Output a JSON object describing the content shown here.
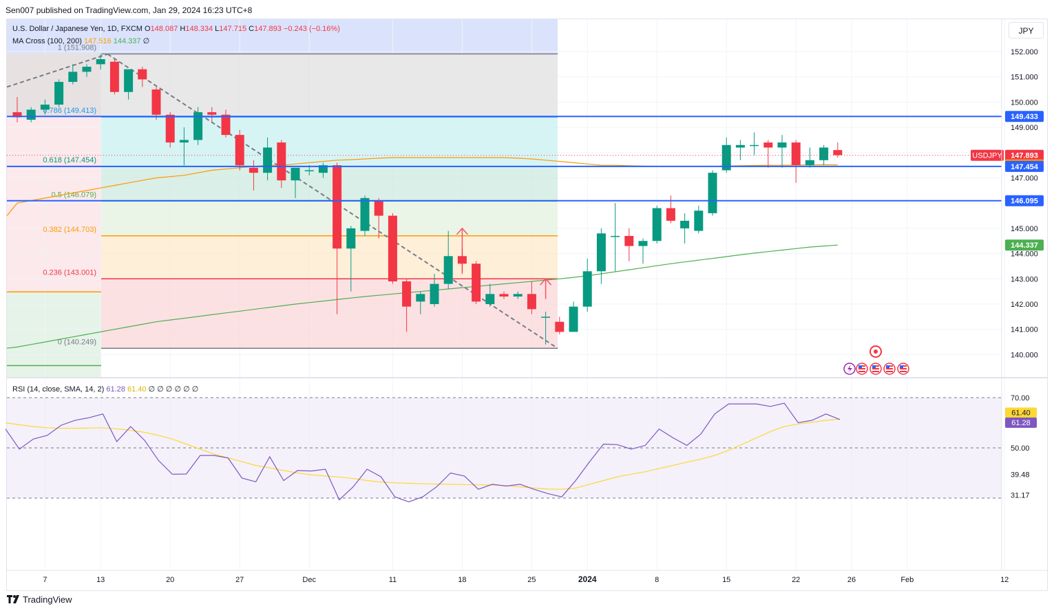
{
  "header": {
    "publish_line": "Sen007 published on TradingView.com, Jan 29, 2024 16:23 UTC+8"
  },
  "legend": {
    "symbol": "U.S. Dollar / Japanese Yen, 1D, FXCM",
    "o_label": "O",
    "o_value": "148.087",
    "h_label": "H",
    "h_value": "148.334",
    "l_label": "L",
    "l_value": "147.715",
    "c_label": "C",
    "c_value": "147.893",
    "change": "−0.243 (−0.16%)",
    "ma_label": "MA Cross (100, 200)",
    "ma_fast": "147.516",
    "ma_slow": "144.337",
    "ma_extra": "∅",
    "rsi_label": "RSI (14, close, SMA, 14, 2)",
    "rsi_value": "61.28",
    "rsi_ma": "61.40",
    "rsi_extra": "∅ ∅ ∅ ∅ ∅ ∅"
  },
  "currency_button": "JPY",
  "footer": {
    "brand": "TradingView"
  },
  "colors": {
    "up": "#089981",
    "down": "#f23645",
    "ma100": "#ff9800",
    "ma200": "#4caf50",
    "rsi": "#7e57c2",
    "rsi_ma": "#fdd835",
    "blue_line": "#2962ff",
    "trend": "#787b86"
  },
  "chart_data": [
    {
      "type": "candlestick",
      "title": "U.S. Dollar / Japanese Yen, 1D, FXCM",
      "x_ticks": [
        "7",
        "13",
        "20",
        "27",
        "Dec",
        "11",
        "18",
        "25",
        "2024",
        "8",
        "15",
        "22",
        "26",
        "Feb",
        "12"
      ],
      "y_ticks": [
        "152.000",
        "151.000",
        "150.000",
        "149.000",
        "148.000",
        "147.000",
        "146.000",
        "145.000",
        "144.000",
        "143.000",
        "142.000",
        "141.000",
        "140.000"
      ],
      "ylim": [
        139.3,
        153.0
      ],
      "grid": true,
      "ohlc": [
        [
          149.6,
          150.2,
          149.2,
          149.4
        ],
        [
          149.3,
          149.8,
          149.2,
          149.7
        ],
        [
          149.7,
          150.1,
          149.5,
          149.9
        ],
        [
          149.9,
          150.9,
          149.8,
          150.8
        ],
        [
          150.8,
          151.5,
          150.7,
          151.2
        ],
        [
          151.2,
          151.5,
          151.0,
          151.4
        ],
        [
          151.5,
          151.9,
          151.3,
          151.7
        ],
        [
          151.6,
          151.7,
          150.3,
          150.4
        ],
        [
          150.4,
          151.3,
          150.1,
          151.3
        ],
        [
          151.3,
          151.4,
          150.6,
          150.9
        ],
        [
          150.5,
          150.6,
          149.3,
          149.5
        ],
        [
          149.5,
          149.6,
          148.2,
          148.4
        ],
        [
          148.4,
          149.0,
          147.5,
          148.5
        ],
        [
          148.5,
          149.8,
          148.3,
          149.6
        ],
        [
          149.6,
          149.8,
          149.2,
          149.5
        ],
        [
          149.5,
          149.7,
          148.6,
          148.7
        ],
        [
          148.7,
          148.9,
          147.3,
          147.5
        ],
        [
          147.4,
          147.7,
          146.5,
          147.2
        ],
        [
          147.2,
          148.6,
          146.9,
          148.2
        ],
        [
          148.4,
          148.5,
          146.6,
          146.9
        ],
        [
          146.9,
          147.4,
          146.2,
          147.4
        ],
        [
          147.3,
          147.5,
          147.1,
          147.3
        ],
        [
          147.2,
          147.6,
          147.0,
          147.5
        ],
        [
          147.5,
          147.6,
          141.6,
          144.2
        ],
        [
          144.2,
          145.1,
          142.5,
          145.0
        ],
        [
          144.9,
          146.3,
          144.7,
          146.2
        ],
        [
          146.1,
          146.2,
          144.6,
          145.5
        ],
        [
          145.5,
          145.6,
          142.8,
          142.9
        ],
        [
          142.9,
          143.0,
          140.9,
          141.9
        ],
        [
          142.1,
          142.5,
          141.6,
          142.4
        ],
        [
          142.0,
          143.2,
          141.9,
          142.8
        ],
        [
          142.8,
          144.9,
          142.6,
          143.9
        ],
        [
          143.9,
          144.2,
          143.3,
          143.6
        ],
        [
          143.6,
          143.7,
          142.0,
          142.1
        ],
        [
          142.0,
          142.8,
          141.9,
          142.4
        ],
        [
          142.4,
          142.5,
          142.2,
          142.3
        ],
        [
          142.3,
          142.5,
          142.2,
          142.4
        ],
        [
          142.4,
          142.9,
          141.6,
          141.8
        ],
        [
          141.5,
          141.7,
          140.4,
          141.5
        ],
        [
          141.3,
          141.5,
          140.8,
          140.9
        ],
        [
          140.9,
          142.1,
          140.9,
          141.9
        ],
        [
          141.9,
          143.8,
          141.7,
          143.3
        ],
        [
          143.3,
          145.0,
          142.8,
          144.8
        ],
        [
          144.7,
          146.0,
          143.3,
          144.7
        ],
        [
          144.7,
          145.0,
          143.7,
          144.3
        ],
        [
          144.3,
          144.6,
          143.6,
          144.5
        ],
        [
          144.5,
          145.9,
          144.4,
          145.8
        ],
        [
          145.8,
          146.3,
          145.2,
          145.3
        ],
        [
          145.0,
          145.6,
          144.4,
          145.3
        ],
        [
          144.9,
          145.9,
          144.8,
          145.7
        ],
        [
          145.6,
          147.3,
          145.5,
          147.2
        ],
        [
          147.3,
          148.6,
          147.2,
          148.3
        ],
        [
          148.2,
          148.5,
          147.7,
          148.3
        ],
        [
          148.3,
          148.8,
          147.9,
          148.3
        ],
        [
          148.4,
          148.5,
          147.4,
          148.2
        ],
        [
          148.2,
          148.7,
          147.4,
          148.4
        ],
        [
          148.4,
          148.5,
          146.8,
          147.5
        ],
        [
          147.5,
          148.2,
          147.4,
          147.7
        ],
        [
          147.7,
          148.3,
          147.5,
          148.2
        ],
        [
          148.1,
          148.4,
          147.8,
          147.9
        ]
      ],
      "ma100": [
        146.0,
        146.1,
        146.2,
        146.3,
        146.4,
        146.5,
        146.6,
        146.7,
        146.8,
        146.9,
        147.0,
        147.05,
        147.1,
        147.2,
        147.3,
        147.35,
        147.4,
        147.45,
        147.5,
        147.5,
        147.55,
        147.6,
        147.65,
        147.7,
        147.72,
        147.75,
        147.78,
        147.8,
        147.8,
        147.8,
        147.8,
        147.8,
        147.8,
        147.8,
        147.8,
        147.8,
        147.78,
        147.75,
        147.7,
        147.65,
        147.6,
        147.55,
        147.5,
        147.5,
        147.48,
        147.47,
        147.46,
        147.46,
        147.46,
        147.46,
        147.46,
        147.47,
        147.48,
        147.49,
        147.5,
        147.5,
        147.51,
        147.51,
        147.52,
        147.516
      ],
      "ma200": [
        140.3,
        140.4,
        140.5,
        140.6,
        140.7,
        140.8,
        140.9,
        141.0,
        141.1,
        141.2,
        141.3,
        141.37,
        141.44,
        141.51,
        141.58,
        141.65,
        141.72,
        141.79,
        141.86,
        141.93,
        142.0,
        142.06,
        142.12,
        142.18,
        142.24,
        142.3,
        142.35,
        142.4,
        142.45,
        142.5,
        142.55,
        142.6,
        142.65,
        142.7,
        142.75,
        142.8,
        142.85,
        142.9,
        142.95,
        143.0,
        143.06,
        143.12,
        143.2,
        143.28,
        143.36,
        143.44,
        143.52,
        143.6,
        143.67,
        143.74,
        143.81,
        143.88,
        143.95,
        144.02,
        144.08,
        144.14,
        144.2,
        144.26,
        144.3,
        144.337
      ],
      "fibonacci": [
        {
          "level": "1 (151.908)",
          "price": 151.908
        },
        {
          "level": "0.786 (149.413)",
          "price": 149.413
        },
        {
          "level": "0.618 (147.454)",
          "price": 147.454
        },
        {
          "level": "0.5 (146.079)",
          "price": 146.079
        },
        {
          "level": "0.382 (144.703)",
          "price": 144.703
        },
        {
          "level": "0.236 (143.001)",
          "price": 143.001
        },
        {
          "level": "0 (140.249)",
          "price": 140.249
        }
      ],
      "horizontal_lines": [
        149.433,
        147.454,
        146.095
      ],
      "price_labels": [
        {
          "text": "149.433",
          "price": 149.433,
          "color": "#2962ff"
        },
        {
          "text": "USDJPY",
          "price": 147.893,
          "color": "#f23645",
          "symbol": true
        },
        {
          "text": "147.893",
          "price": 147.893,
          "color": "#f23645"
        },
        {
          "text": "147.516",
          "price": 147.516,
          "color": "#ff9800"
        },
        {
          "text": "147.454",
          "price": 147.454,
          "color": "#2962ff"
        },
        {
          "text": "146.095",
          "price": 146.095,
          "color": "#2962ff"
        },
        {
          "text": "144.337",
          "price": 144.337,
          "color": "#4caf50"
        }
      ]
    },
    {
      "type": "line",
      "title": "RSI (14, close, SMA, 14, 2)",
      "y_ticks": [
        "70.00",
        "61.40",
        "61.28",
        "50.00",
        "39.48",
        "31.17"
      ],
      "levels": [
        70,
        50,
        30
      ],
      "ylim": [
        27.5,
        71.5
      ],
      "rsi": [
        57.5,
        49.5,
        53.5,
        55.0,
        59.0,
        61.0,
        62.0,
        63.5,
        52.5,
        58.5,
        53.0,
        45.0,
        39.5,
        39.6,
        47.0,
        47.0,
        46.0,
        38.0,
        36.5,
        46.5,
        37.0,
        41.0,
        40.8,
        41.5,
        29.3,
        34.5,
        41.5,
        38.5,
        30.5,
        28.5,
        30.5,
        34.5,
        40.0,
        38.8,
        33.5,
        35.5,
        34.8,
        35.5,
        33.5,
        31.8,
        30.5,
        37.0,
        44.5,
        51.5,
        51.3,
        49.5,
        51.0,
        57.5,
        54.0,
        51.0,
        55.5,
        63.5,
        67.5,
        67.5,
        67.5,
        66.5,
        67.8,
        60.0,
        61.0,
        63.5,
        61.28
      ],
      "rsi_ma": [
        60.0,
        59.2,
        58.5,
        58.0,
        57.8,
        57.8,
        57.9,
        58.0,
        57.6,
        57.0,
        56.2,
        55.0,
        53.5,
        51.5,
        49.5,
        47.5,
        46.0,
        44.5,
        43.0,
        42.0,
        41.0,
        40.0,
        39.3,
        38.8,
        38.4,
        37.8,
        37.0,
        36.4,
        36.1,
        35.9,
        35.7,
        35.6,
        35.5,
        35.4,
        35.3,
        35.2,
        35.0,
        34.5,
        34.0,
        33.6,
        33.5,
        34.0,
        35.5,
        37.0,
        38.5,
        39.5,
        40.5,
        41.8,
        43.0,
        44.3,
        45.5,
        47.0,
        49.0,
        51.5,
        54.0,
        56.5,
        58.5,
        59.5,
        60.2,
        61.0,
        61.4
      ],
      "series": [
        {
          "name": "RSI",
          "value": 61.28
        },
        {
          "name": "RSI-based MA",
          "value": 61.4
        }
      ]
    }
  ]
}
